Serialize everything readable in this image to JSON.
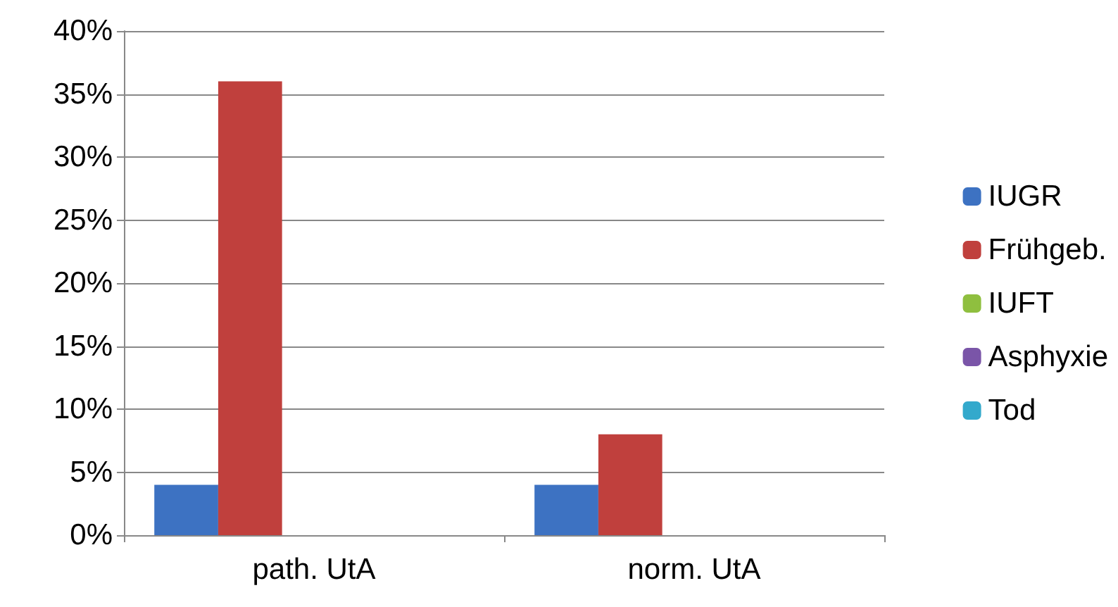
{
  "chart_data": {
    "type": "bar",
    "categories": [
      "path. UtA",
      "norm. UtA"
    ],
    "series": [
      {
        "name": "IUGR",
        "color": "#3d72c2",
        "values": [
          4,
          4
        ]
      },
      {
        "name": "Frühgeb.",
        "color": "#c0403d",
        "values": [
          36,
          8
        ]
      },
      {
        "name": "IUFT",
        "color": "#8fbf3f",
        "values": [
          0,
          0
        ]
      },
      {
        "name": "Asphyxie",
        "color": "#7a55a8",
        "values": [
          0,
          0
        ]
      },
      {
        "name": "Tod",
        "color": "#33a9cc",
        "values": [
          0,
          0
        ]
      }
    ],
    "ylim": [
      0,
      40
    ],
    "yticks": [
      {
        "value": 0,
        "label": "0%"
      },
      {
        "value": 5,
        "label": "5%"
      },
      {
        "value": 10,
        "label": "10%"
      },
      {
        "value": 15,
        "label": "15%"
      },
      {
        "value": 20,
        "label": "20%"
      },
      {
        "value": 25,
        "label": "25%"
      },
      {
        "value": 30,
        "label": "30%"
      },
      {
        "value": 35,
        "label": "35%"
      },
      {
        "value": 40,
        "label": "40%"
      }
    ],
    "grid": "y",
    "legend": "right"
  }
}
